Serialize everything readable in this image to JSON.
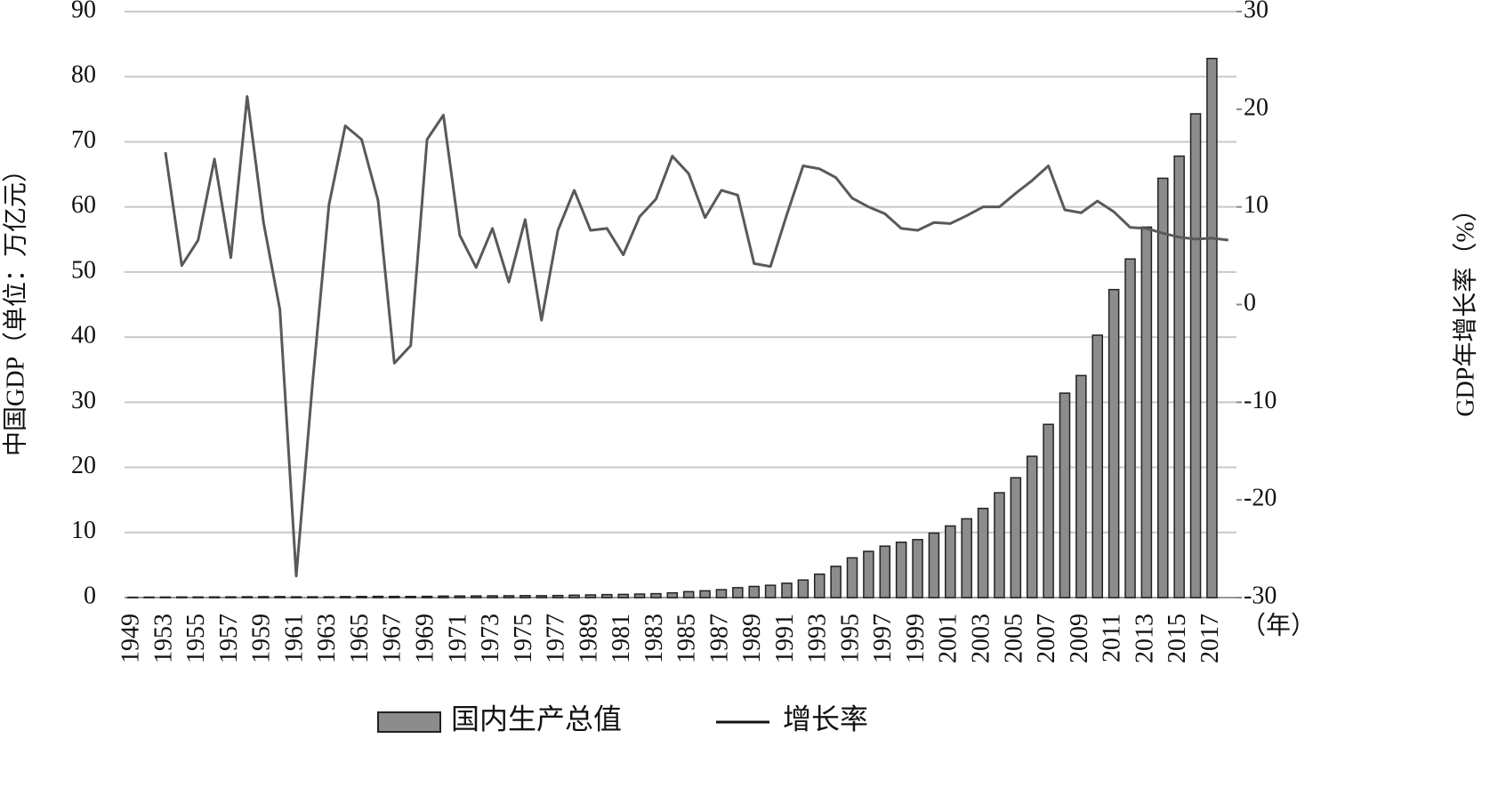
{
  "chart_data": {
    "type": "bar-line",
    "ylabel": "中国GDP（单位：万亿元）",
    "y2label": "GDP年增长率（%）",
    "xlabel": "（年）",
    "categories": [
      "1949",
      null,
      "1953",
      null,
      "1955",
      null,
      "1957",
      null,
      "1959",
      null,
      "1961",
      null,
      "1963",
      null,
      "1965",
      null,
      "1967",
      null,
      "1969",
      null,
      "1971",
      null,
      "1973",
      null,
      "1975",
      null,
      "1977",
      null,
      "1989",
      null,
      "1981",
      null,
      "1983",
      null,
      "1985",
      null,
      "1987",
      null,
      "1989",
      null,
      "1991",
      null,
      "1993",
      null,
      "1995",
      null,
      "1997",
      null,
      "1999",
      null,
      "2001",
      null,
      "2003",
      null,
      "2005",
      null,
      "2007",
      null,
      "2009",
      null,
      "2011",
      null,
      "2013",
      null,
      "2015",
      null,
      "2017",
      null
    ],
    "series": [
      {
        "name": "国内生产总值",
        "type": "bar",
        "color": "#8c8c8c",
        "axis": "y",
        "values": [
          0.05,
          0.07,
          0.08,
          0.09,
          0.09,
          0.1,
          0.11,
          0.13,
          0.14,
          0.15,
          0.12,
          0.12,
          0.12,
          0.15,
          0.17,
          0.19,
          0.18,
          0.17,
          0.19,
          0.23,
          0.24,
          0.25,
          0.27,
          0.28,
          0.3,
          0.29,
          0.32,
          0.37,
          0.41,
          0.46,
          0.49,
          0.54,
          0.6,
          0.73,
          0.91,
          1.04,
          1.22,
          1.52,
          1.71,
          1.89,
          2.2,
          2.7,
          3.6,
          4.8,
          6.1,
          7.1,
          7.9,
          8.5,
          8.9,
          9.9,
          11.0,
          12.1,
          13.7,
          16.1,
          18.4,
          21.7,
          26.6,
          31.4,
          34.1,
          40.3,
          47.3,
          52.0,
          56.9,
          64.4,
          67.8,
          74.3,
          82.8,
          null
        ]
      },
      {
        "name": "增长率",
        "type": "line",
        "color": "#595959",
        "axis": "y2",
        "values": [
          null,
          null,
          15.6,
          4.0,
          6.6,
          14.9,
          4.8,
          21.3,
          8.4,
          -0.5,
          -27.8,
          -8.0,
          10.2,
          18.3,
          16.9,
          10.7,
          -6.0,
          -4.2,
          16.9,
          19.4,
          7.1,
          3.8,
          7.8,
          2.3,
          8.7,
          -1.6,
          7.6,
          11.7,
          7.6,
          7.8,
          5.1,
          9.0,
          10.8,
          15.2,
          13.4,
          8.9,
          11.7,
          11.2,
          4.2,
          3.9,
          9.2,
          14.2,
          13.9,
          13.0,
          10.9,
          10.0,
          9.3,
          7.8,
          7.6,
          8.4,
          8.3,
          9.1,
          10.0,
          10.0,
          11.4,
          12.7,
          14.2,
          9.7,
          9.4,
          10.6,
          9.5,
          7.9,
          7.8,
          7.3,
          6.9,
          6.7,
          6.8,
          6.6
        ]
      }
    ],
    "ylim": [
      0,
      90
    ],
    "yticks": [
      0,
      10,
      20,
      30,
      40,
      50,
      60,
      70,
      80,
      90
    ],
    "y2lim": [
      -30,
      30
    ],
    "y2ticks": [
      -30,
      -20,
      -10,
      0,
      10,
      20,
      30
    ],
    "grid": true,
    "legend": "bottom"
  }
}
